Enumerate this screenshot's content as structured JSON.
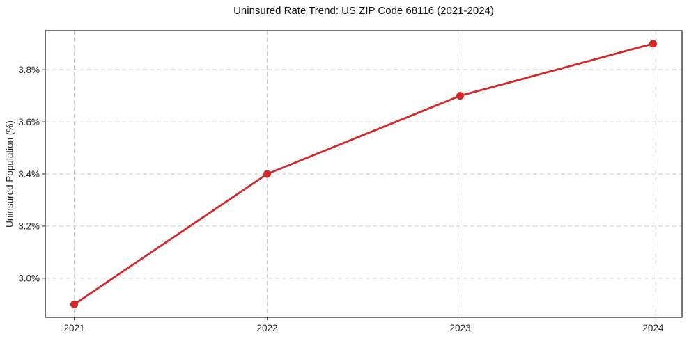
{
  "figure": {
    "title": "Uninsured Rate Trend: US ZIP Code 68116 (2021-2024)"
  },
  "chart_data": {
    "type": "line",
    "title": "Uninsured Rate Trend: US ZIP Code 68116 (2021-2024)",
    "xlabel": "",
    "ylabel": "Uninsured Population (%)",
    "x": [
      2021,
      2022,
      2023,
      2024
    ],
    "values": [
      2.9,
      3.4,
      3.7,
      3.9
    ],
    "xtick_labels": [
      "2021",
      "2022",
      "2023",
      "2024"
    ],
    "yticks": [
      3.0,
      3.2,
      3.4,
      3.6,
      3.8
    ],
    "ytick_labels": [
      "3.0%",
      "3.2%",
      "3.4%",
      "3.6%",
      "3.8%"
    ],
    "xlim": [
      2020.85,
      2024.15
    ],
    "ylim": [
      2.85,
      3.95
    ],
    "grid": true,
    "legend": "none",
    "line_color": "#d62728",
    "marker_color": "#d62728",
    "grid_color": "#cccccc",
    "spine_color": "#1a1a1a",
    "tick_color": "#262626",
    "background_color": "#ffffff"
  }
}
